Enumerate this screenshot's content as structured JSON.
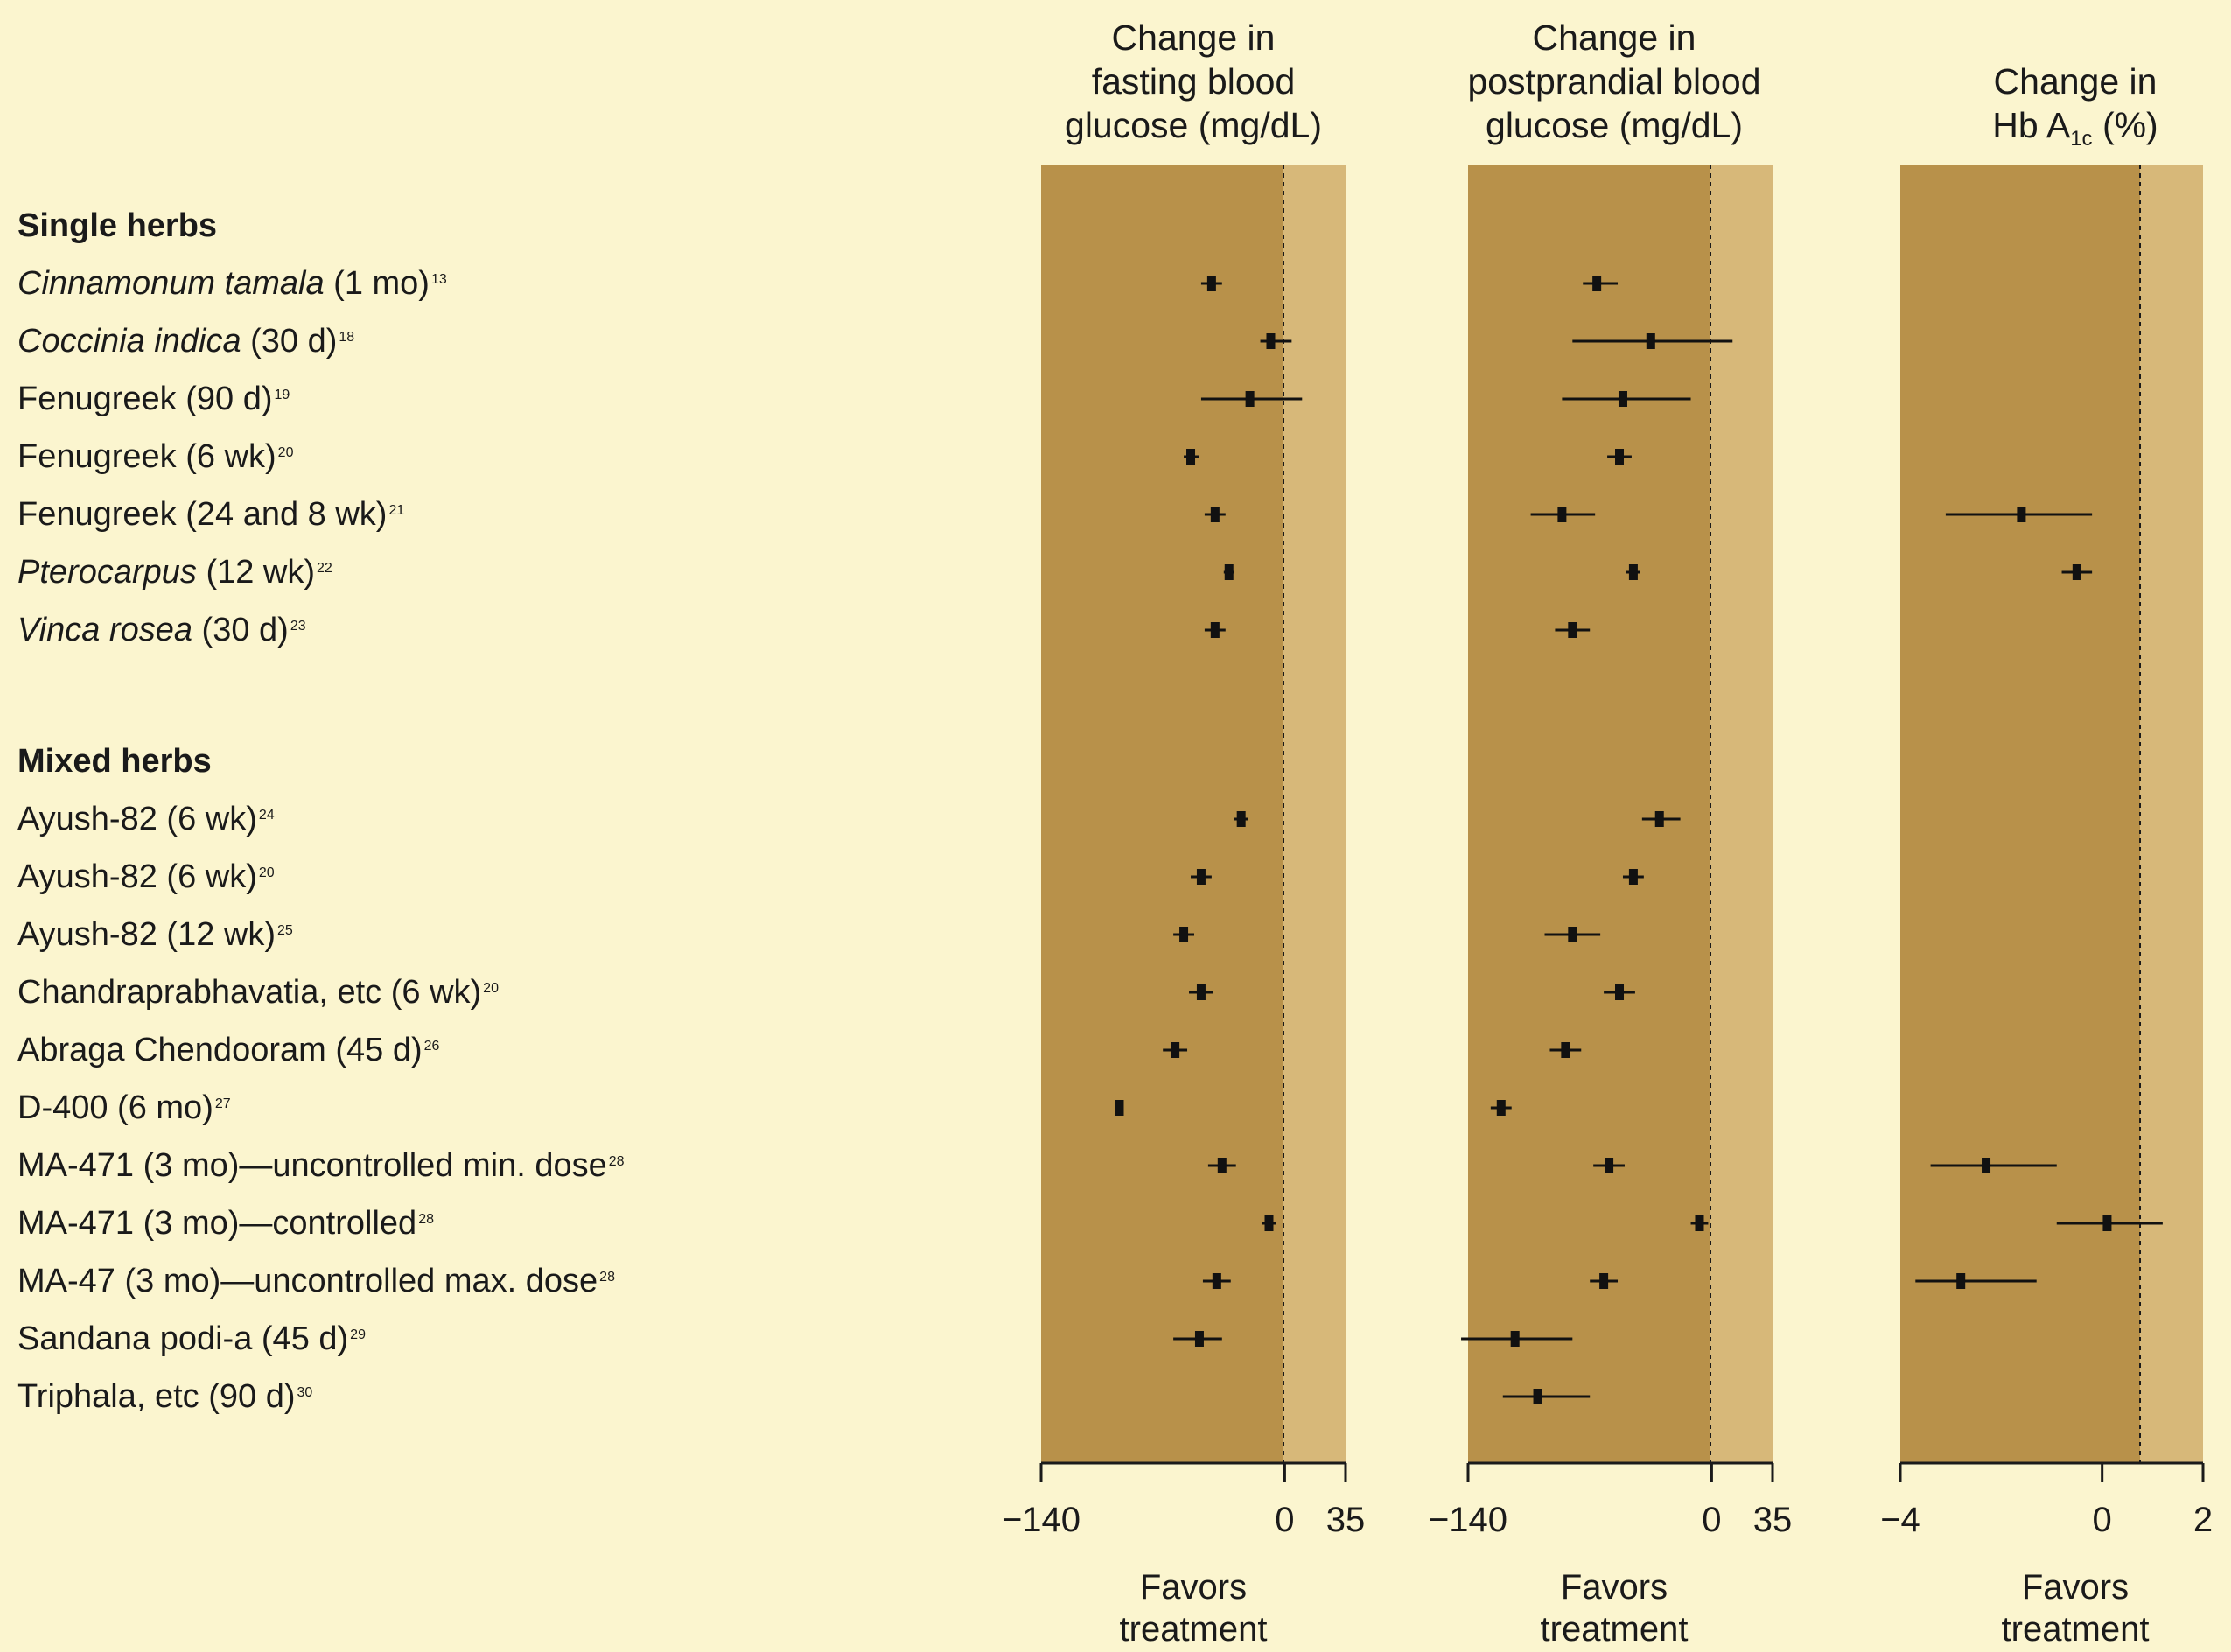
{
  "chart_data": {
    "type": "forest",
    "panels": [
      {
        "title_lines": [
          "Change in",
          "fasting blood",
          "glucose (mg/dL)"
        ],
        "xlim": [
          -140,
          35
        ],
        "ticks": [
          "−140",
          "0",
          "35"
        ],
        "tick_values": [
          -140,
          0,
          35
        ],
        "footer_lines": [
          "Favors",
          "treatment"
        ]
      },
      {
        "title_lines": [
          "Change in",
          "postprandial blood",
          "glucose (mg/dL)"
        ],
        "xlim": [
          -140,
          35
        ],
        "ticks": [
          "−140",
          "0",
          "35"
        ],
        "tick_values": [
          -140,
          0,
          35
        ],
        "footer_lines": [
          "Favors",
          "treatment"
        ]
      },
      {
        "title_lines": [
          "Change in",
          "Hb A"
        ],
        "title_sub": "1c",
        "title_suffix": " (%)",
        "xlim": [
          -4,
          2
        ],
        "ticks": [
          "−4",
          "0",
          "2"
        ],
        "tick_values": [
          -4,
          0,
          2
        ],
        "footer_lines": [
          "Favors",
          "treatment"
        ]
      }
    ],
    "groups": [
      {
        "heading": "Single herbs",
        "studies": [
          {
            "name": "Cinnamonum tamala",
            "italic": true,
            "detail": " (1 mo)",
            "ref": "13",
            "fbg": [
              -42,
              -48,
              -36
            ],
            "ppbg": [
              -66,
              -74,
              -54
            ],
            "hba1c": null
          },
          {
            "name": "Coccinia indica",
            "italic": true,
            "detail": " (30 d)",
            "ref": "18",
            "fbg": [
              -8,
              -14,
              4
            ],
            "ppbg": [
              -35,
              -80,
              12
            ],
            "hba1c": null
          },
          {
            "name": "Fenugreek",
            "italic": false,
            "detail": " (90 d)",
            "ref": "19",
            "fbg": [
              -20,
              -48,
              10
            ],
            "ppbg": [
              -51,
              -86,
              -12
            ],
            "hba1c": null
          },
          {
            "name": "Fenugreek",
            "italic": false,
            "detail": " (6 wk)",
            "ref": "20",
            "fbg": [
              -54,
              -58,
              -49
            ],
            "ppbg": [
              -53,
              -60,
              -46
            ],
            "hba1c": null
          },
          {
            "name": "Fenugreek",
            "italic": false,
            "detail": " (24 and 8 wk)",
            "ref": "21",
            "fbg": [
              -40,
              -46,
              -34
            ],
            "ppbg": [
              -86,
              -104,
              -67
            ],
            "hba1c": [
              -1.6,
              -3.1,
              -0.2
            ]
          },
          {
            "name": "Pterocarpus",
            "italic": true,
            "detail": " (12 wk)",
            "ref": "22",
            "fbg": [
              -32,
              -35,
              -29
            ],
            "ppbg": [
              -45,
              -49,
              -41
            ],
            "hba1c": [
              -0.5,
              -0.8,
              -0.2
            ]
          },
          {
            "name": "Vinca rosea",
            "italic": true,
            "detail": " (30 d)",
            "ref": "23",
            "fbg": [
              -40,
              -46,
              -34
            ],
            "ppbg": [
              -80,
              -90,
              -70
            ],
            "hba1c": null
          }
        ]
      },
      {
        "heading": "Mixed herbs",
        "studies": [
          {
            "name": "Ayush-82",
            "italic": false,
            "detail": " (6 wk)",
            "ref": "24",
            "fbg": [
              -25,
              -29,
              -21
            ],
            "ppbg": [
              -30,
              -40,
              -18
            ],
            "hba1c": null
          },
          {
            "name": "Ayush-82",
            "italic": false,
            "detail": " (6 wk)",
            "ref": "20",
            "fbg": [
              -48,
              -54,
              -42
            ],
            "ppbg": [
              -45,
              -51,
              -39
            ],
            "hba1c": null
          },
          {
            "name": "Ayush-82",
            "italic": false,
            "detail": " (12 wk)",
            "ref": "25",
            "fbg": [
              -58,
              -64,
              -52
            ],
            "ppbg": [
              -80,
              -96,
              -64
            ],
            "hba1c": null
          },
          {
            "name": "Chandraprabhavatia, etc",
            "italic": false,
            "detail": " (6 wk)",
            "ref": "20",
            "fbg": [
              -48,
              -55,
              -41
            ],
            "ppbg": [
              -53,
              -62,
              -44
            ],
            "hba1c": null
          },
          {
            "name": "Abraga Chendooram",
            "italic": false,
            "detail": " (45 d)",
            "ref": "26",
            "fbg": [
              -63,
              -70,
              -56
            ],
            "ppbg": [
              -84,
              -93,
              -75
            ],
            "hba1c": null
          },
          {
            "name": "D-400",
            "italic": false,
            "detail": " (6 mo)",
            "ref": "27",
            "fbg": [
              -95,
              -97,
              -93
            ],
            "ppbg": [
              -121,
              -127,
              -115
            ],
            "hba1c": null
          },
          {
            "name": "MA-471",
            "italic": false,
            "detail": " (3 mo)—uncontrolled min. dose",
            "ref": "28",
            "fbg": [
              -36,
              -44,
              -28
            ],
            "ppbg": [
              -59,
              -68,
              -50
            ],
            "hba1c": [
              -2.3,
              -3.4,
              -0.9
            ]
          },
          {
            "name": "MA-471",
            "italic": false,
            "detail": " (3 mo)—controlled",
            "ref": "28",
            "fbg": [
              -9,
              -13,
              -5
            ],
            "ppbg": [
              -7,
              -12,
              -2
            ],
            "hba1c": [
              0.1,
              -0.9,
              1.2
            ]
          },
          {
            "name": "MA-47",
            "italic": false,
            "detail": " (3 mo)—uncontrolled max. dose",
            "ref": "28",
            "fbg": [
              -39,
              -47,
              -31
            ],
            "ppbg": [
              -62,
              -70,
              -54
            ],
            "hba1c": [
              -2.8,
              -3.7,
              -1.3
            ]
          },
          {
            "name": "Sandana podi-a",
            "italic": false,
            "detail": " (45 d)",
            "ref": "29",
            "fbg": [
              -49,
              -64,
              -36
            ],
            "ppbg": [
              -113,
              -144,
              -80
            ],
            "hba1c": null
          },
          {
            "name": "Triphala, etc",
            "italic": false,
            "detail": " (90 d)",
            "ref": "30",
            "fbg": null,
            "ppbg": [
              -100,
              -120,
              -70
            ],
            "hba1c": null
          }
        ]
      }
    ]
  }
}
